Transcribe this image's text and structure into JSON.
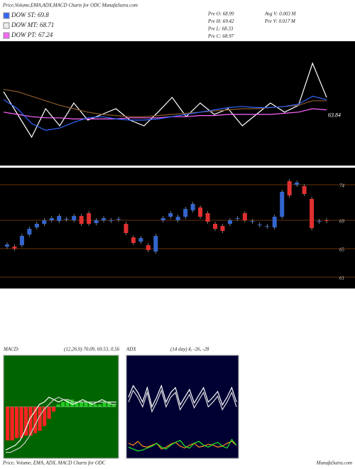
{
  "header": {
    "title": "Price,Volume,EMA,ADX,MACD Charts for ODC MunafaSutra.com"
  },
  "legend": [
    {
      "label": "DOW ST: 69.8",
      "color": "#3366ff"
    },
    {
      "label": "DOW MT: 68.71",
      "color": "#eeeeee"
    },
    {
      "label": "DOW PT: 67.24",
      "color": "#ff66ff"
    }
  ],
  "info": [
    "Pre O: 68.99",
    "Pre H: 69.42",
    "Pre L: 68.33",
    "Pre C: 68.97",
    "Avg V: 0.003 M",
    "Pre V: 0.017 M"
  ],
  "footer": {
    "left": "Price, Volume, EMA, ADX, MACD Charts for ODC",
    "right": "MunafaSutra.com"
  },
  "chart_data": [
    {
      "type": "line",
      "ylim": [
        0,
        100
      ],
      "price_label": "63.84",
      "series": [
        {
          "color": "#ffffff",
          "values": [
            60,
            40,
            20,
            45,
            30,
            50,
            35,
            40,
            45,
            35,
            30,
            42,
            55,
            38,
            50,
            40,
            45,
            30,
            40,
            50,
            42,
            48,
            85,
            55
          ]
        },
        {
          "color": "#8b5a2b",
          "values": [
            62,
            60,
            56,
            52,
            48,
            45,
            42,
            40,
            39,
            38,
            38,
            39,
            40,
            41,
            42,
            43,
            44,
            45,
            45,
            46,
            47,
            48,
            52,
            52
          ]
        },
        {
          "color": "#ff66ff",
          "values": [
            42,
            40,
            38,
            37,
            37,
            36,
            36,
            36,
            36,
            37,
            37,
            37,
            38,
            38,
            39,
            39,
            40,
            40,
            40,
            40,
            41,
            42,
            45,
            44
          ]
        },
        {
          "color": "#3366ff",
          "values": [
            53,
            45,
            32,
            26,
            28,
            33,
            37,
            38,
            36,
            35,
            35,
            36,
            38,
            40,
            42,
            44,
            46,
            47,
            46,
            46,
            47,
            49,
            56,
            53
          ]
        }
      ]
    },
    {
      "type": "candlestick",
      "ylim": [
        60,
        76
      ],
      "yticks": [
        74,
        69,
        65,
        61
      ],
      "up_color": "#3366cc",
      "down_color": "#e03030",
      "candles": [
        [
          65.3,
          65.6
        ],
        [
          65.3,
          65.0
        ],
        [
          65.5,
          66.8
        ],
        [
          67.0,
          67.8
        ],
        [
          68.0,
          68.5
        ],
        [
          68.5,
          69.0
        ],
        [
          69.0,
          69.3
        ],
        [
          68.9,
          69.6
        ],
        [
          69.2,
          69.2
        ],
        [
          69.0,
          69.6
        ],
        [
          69.6,
          68.5
        ],
        [
          70.0,
          68.5
        ],
        [
          68.6,
          69.0
        ],
        [
          69.0,
          69.3
        ],
        [
          69.0,
          69.0
        ],
        [
          69.2,
          69.2
        ],
        [
          68.5,
          67.2
        ],
        [
          66.6,
          65.8
        ],
        [
          66.0,
          66.5
        ],
        [
          65.5,
          64.8
        ],
        [
          64.6,
          66.8
        ],
        [
          69.0,
          69.3
        ],
        [
          69.5,
          70.0
        ],
        [
          69.0,
          69.5
        ],
        [
          69.5,
          70.6
        ],
        [
          70.4,
          71.3
        ],
        [
          70.8,
          69.5
        ],
        [
          70.0,
          68.8
        ],
        [
          68.5,
          67.8
        ],
        [
          68.2,
          67.5
        ],
        [
          68.5,
          69.0
        ],
        [
          69.3,
          69.3
        ],
        [
          70.0,
          69.0
        ],
        [
          68.9,
          68.9
        ],
        [
          68.4,
          68.4
        ],
        [
          68.2,
          68.2
        ],
        [
          68.0,
          69.5
        ],
        [
          69.5,
          73.0
        ],
        [
          74.5,
          72.5
        ],
        [
          74.0,
          74.3
        ],
        [
          73.8,
          72.7
        ],
        [
          72.0,
          67.9
        ],
        [
          68.9,
          68.9
        ],
        [
          68.99,
          68.97
        ]
      ]
    },
    {
      "type": "macd",
      "title": "MACD:",
      "subtitle": "(12,26,9) 70.09, 69.53, 0.56",
      "ylim": [
        -2,
        2
      ],
      "histogram": {
        "up_color": "#22cc22",
        "down_color": "#ff2222",
        "values": [
          -1.4,
          -1.4,
          -1.3,
          -1.3,
          -1.2,
          -1.2,
          -1.1,
          -1.0,
          -0.8,
          -0.5,
          -0.2,
          0.1,
          0.2,
          0.3,
          0.3,
          0.2,
          0.2,
          0.2,
          0.2,
          0.1,
          0.1,
          0.2,
          0.2,
          0.1
        ]
      },
      "series": [
        {
          "color": "#ffffff",
          "values": [
            -1.8,
            -1.7,
            -1.6,
            -1.4,
            -1.0,
            -0.5,
            -0.2,
            0.1,
            0.2,
            0.4,
            0.3,
            0.2,
            0.3,
            0.2,
            0.1,
            0.2,
            0.3,
            0.2,
            0.1,
            0.2,
            0.3,
            0.2,
            0.2,
            0.2
          ]
        },
        {
          "color": "#cccccc",
          "values": [
            -1.9,
            -1.9,
            -1.8,
            -1.7,
            -1.5,
            -1.2,
            -0.8,
            -0.4,
            -0.1,
            0.1,
            0.3,
            0.4,
            0.3,
            0.3,
            0.2,
            0.2,
            0.2,
            0.2,
            0.2,
            0.2,
            0.2,
            0.2,
            0.1,
            0.1
          ]
        }
      ]
    },
    {
      "type": "line",
      "title": "ADX",
      "subtitle": "(14 day) 4, -26, -28",
      "ylim": [
        0,
        100
      ],
      "series": [
        {
          "color": "#ffffff",
          "values": [
            60,
            72,
            65,
            55,
            70,
            50,
            60,
            72,
            55,
            65,
            70,
            52,
            60,
            68,
            54,
            62,
            70,
            55,
            60,
            66,
            52,
            60,
            70,
            55
          ]
        },
        {
          "color": "#dddddd",
          "values": [
            55,
            67,
            60,
            50,
            65,
            45,
            55,
            67,
            50,
            60,
            65,
            47,
            55,
            63,
            49,
            57,
            65,
            50,
            55,
            61,
            47,
            55,
            65,
            50
          ]
        },
        {
          "color": "#ff8c1a",
          "values": [
            12,
            10,
            14,
            9,
            8,
            10,
            12,
            6,
            8,
            11,
            13,
            9,
            7,
            10,
            12,
            8,
            9,
            11,
            10,
            8,
            9,
            12,
            14,
            10
          ]
        },
        {
          "color": "#22ee22",
          "values": [
            8,
            6,
            4,
            5,
            7,
            9,
            12,
            8,
            6,
            10,
            13,
            15,
            9,
            7,
            12,
            14,
            10,
            8,
            11,
            13,
            9,
            7,
            16,
            10
          ]
        }
      ]
    }
  ]
}
